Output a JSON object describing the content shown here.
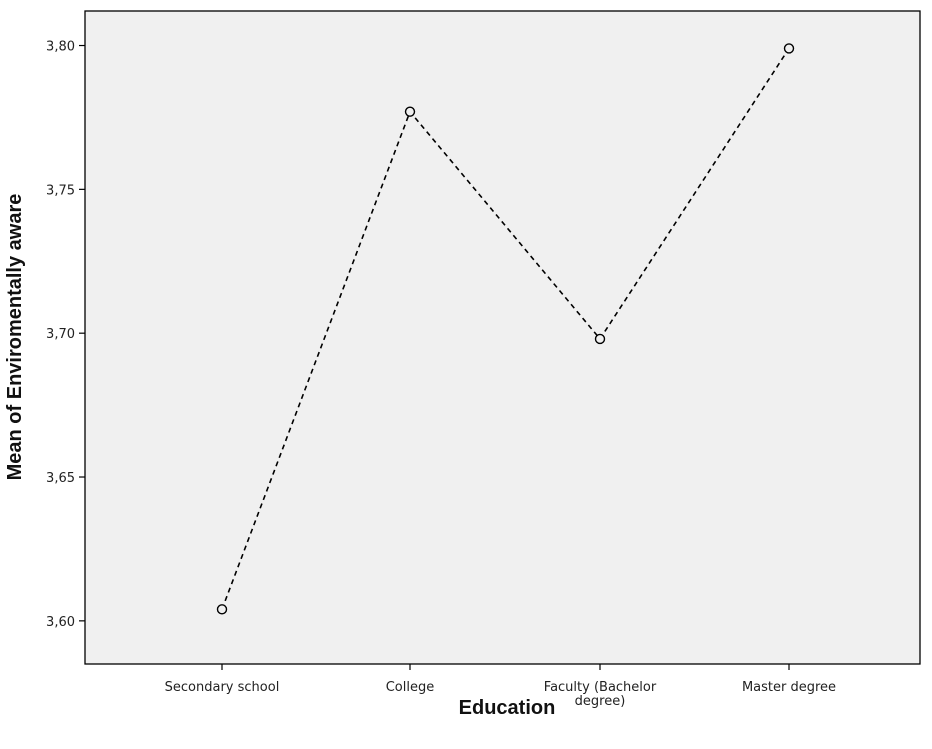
{
  "chart_data": {
    "type": "line",
    "xlabel": "Education",
    "ylabel": "Mean of Enviromentally aware",
    "categories": [
      [
        "Secondary school"
      ],
      [
        "College"
      ],
      [
        "Faculty (Bachelor",
        "degree)"
      ],
      [
        "Master degree"
      ]
    ],
    "values": [
      3.604,
      3.777,
      3.698,
      3.799
    ],
    "ylim": [
      3.585,
      3.812
    ],
    "yticks": [
      3.6,
      3.65,
      3.7,
      3.75,
      3.8
    ],
    "ytick_labels": [
      "3,60",
      "3,65",
      "3,70",
      "3,75",
      "3,80"
    ],
    "line_style": "dashed",
    "marker": "open-circle",
    "grid": false,
    "legend": false,
    "colors": {
      "plot_background": "#f0f0f0",
      "line": "#000000",
      "frame": "#000000"
    }
  }
}
